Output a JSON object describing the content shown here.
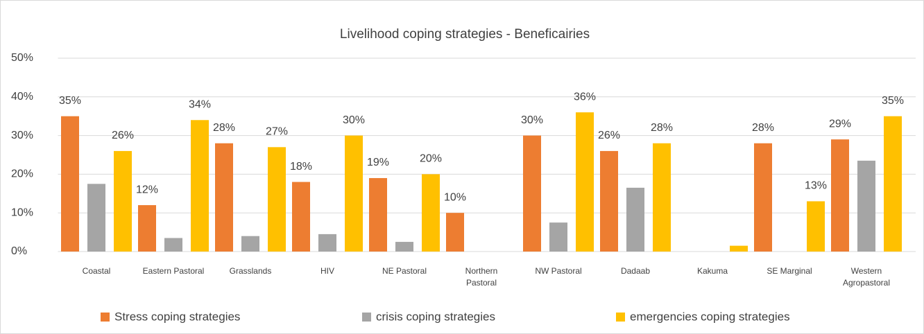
{
  "chart_data": {
    "type": "bar",
    "title": "Livelihood coping strategies - Beneficairies",
    "categories": [
      "Coastal",
      "Eastern Pastoral",
      "Grasslands",
      "HIV",
      "NE Pastoral",
      "Northern Pastoral",
      "NW Pastoral",
      "Dadaab",
      "Kakuma",
      "SE Marginal",
      "Western Agropastoral"
    ],
    "series": [
      {
        "name": "Stress coping strategies",
        "color": "#ED7D31",
        "values": [
          35,
          12,
          28,
          18,
          19,
          10,
          30,
          26,
          null,
          28,
          29
        ],
        "value_labels": [
          "35%",
          "12%",
          "28%",
          "18%",
          "19%",
          "10%",
          "30%",
          "26%",
          null,
          "28%",
          "29%"
        ]
      },
      {
        "name": "crisis coping strategies",
        "color": "#A5A5A5",
        "values": [
          17.5,
          3.5,
          4,
          4.5,
          2.5,
          null,
          7.5,
          16.5,
          null,
          null,
          23.5
        ]
      },
      {
        "name": "emergencies coping strategies",
        "color": "#FFC000",
        "values": [
          26,
          34,
          27,
          30,
          20,
          null,
          36,
          28,
          1.5,
          13,
          35
        ],
        "value_labels": [
          "26%",
          "34%",
          "27%",
          "30%",
          "20%",
          null,
          "36%",
          "28%",
          null,
          "13%",
          "35%"
        ]
      }
    ],
    "ylim": [
      0,
      50
    ],
    "yticks": [
      {
        "value": 0,
        "label": "0%"
      },
      {
        "value": 10,
        "label": "10%"
      },
      {
        "value": 20,
        "label": "20%"
      },
      {
        "value": 30,
        "label": "30%"
      },
      {
        "value": 40,
        "label": "40%"
      },
      {
        "value": 50,
        "label": "50%"
      }
    ],
    "grid": true,
    "legend": "bottom"
  }
}
